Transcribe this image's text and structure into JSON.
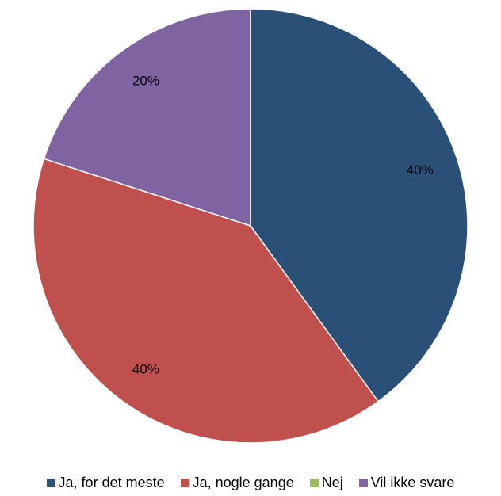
{
  "chart_data": {
    "type": "pie",
    "categories": [
      "Ja, for det meste",
      "Ja, nogle gange",
      "Nej",
      "Vil ikke svare"
    ],
    "values": [
      40,
      40,
      0,
      20
    ],
    "labels": [
      "40%",
      "40%",
      "",
      "20%"
    ],
    "colors": [
      "#2a5078",
      "#c0504d",
      "#9bbb59",
      "#8064a2"
    ],
    "start_angle": "12 o'clock",
    "direction": "clockwise",
    "legend_position": "bottom"
  },
  "legend": {
    "items": [
      {
        "label": "Ja, for det meste",
        "color": "#2a5078"
      },
      {
        "label": "Ja, nogle gange",
        "color": "#c0504d"
      },
      {
        "label": "Nej",
        "color": "#9bbb59"
      },
      {
        "label": "Vil ikke svare",
        "color": "#8064a2"
      }
    ]
  }
}
